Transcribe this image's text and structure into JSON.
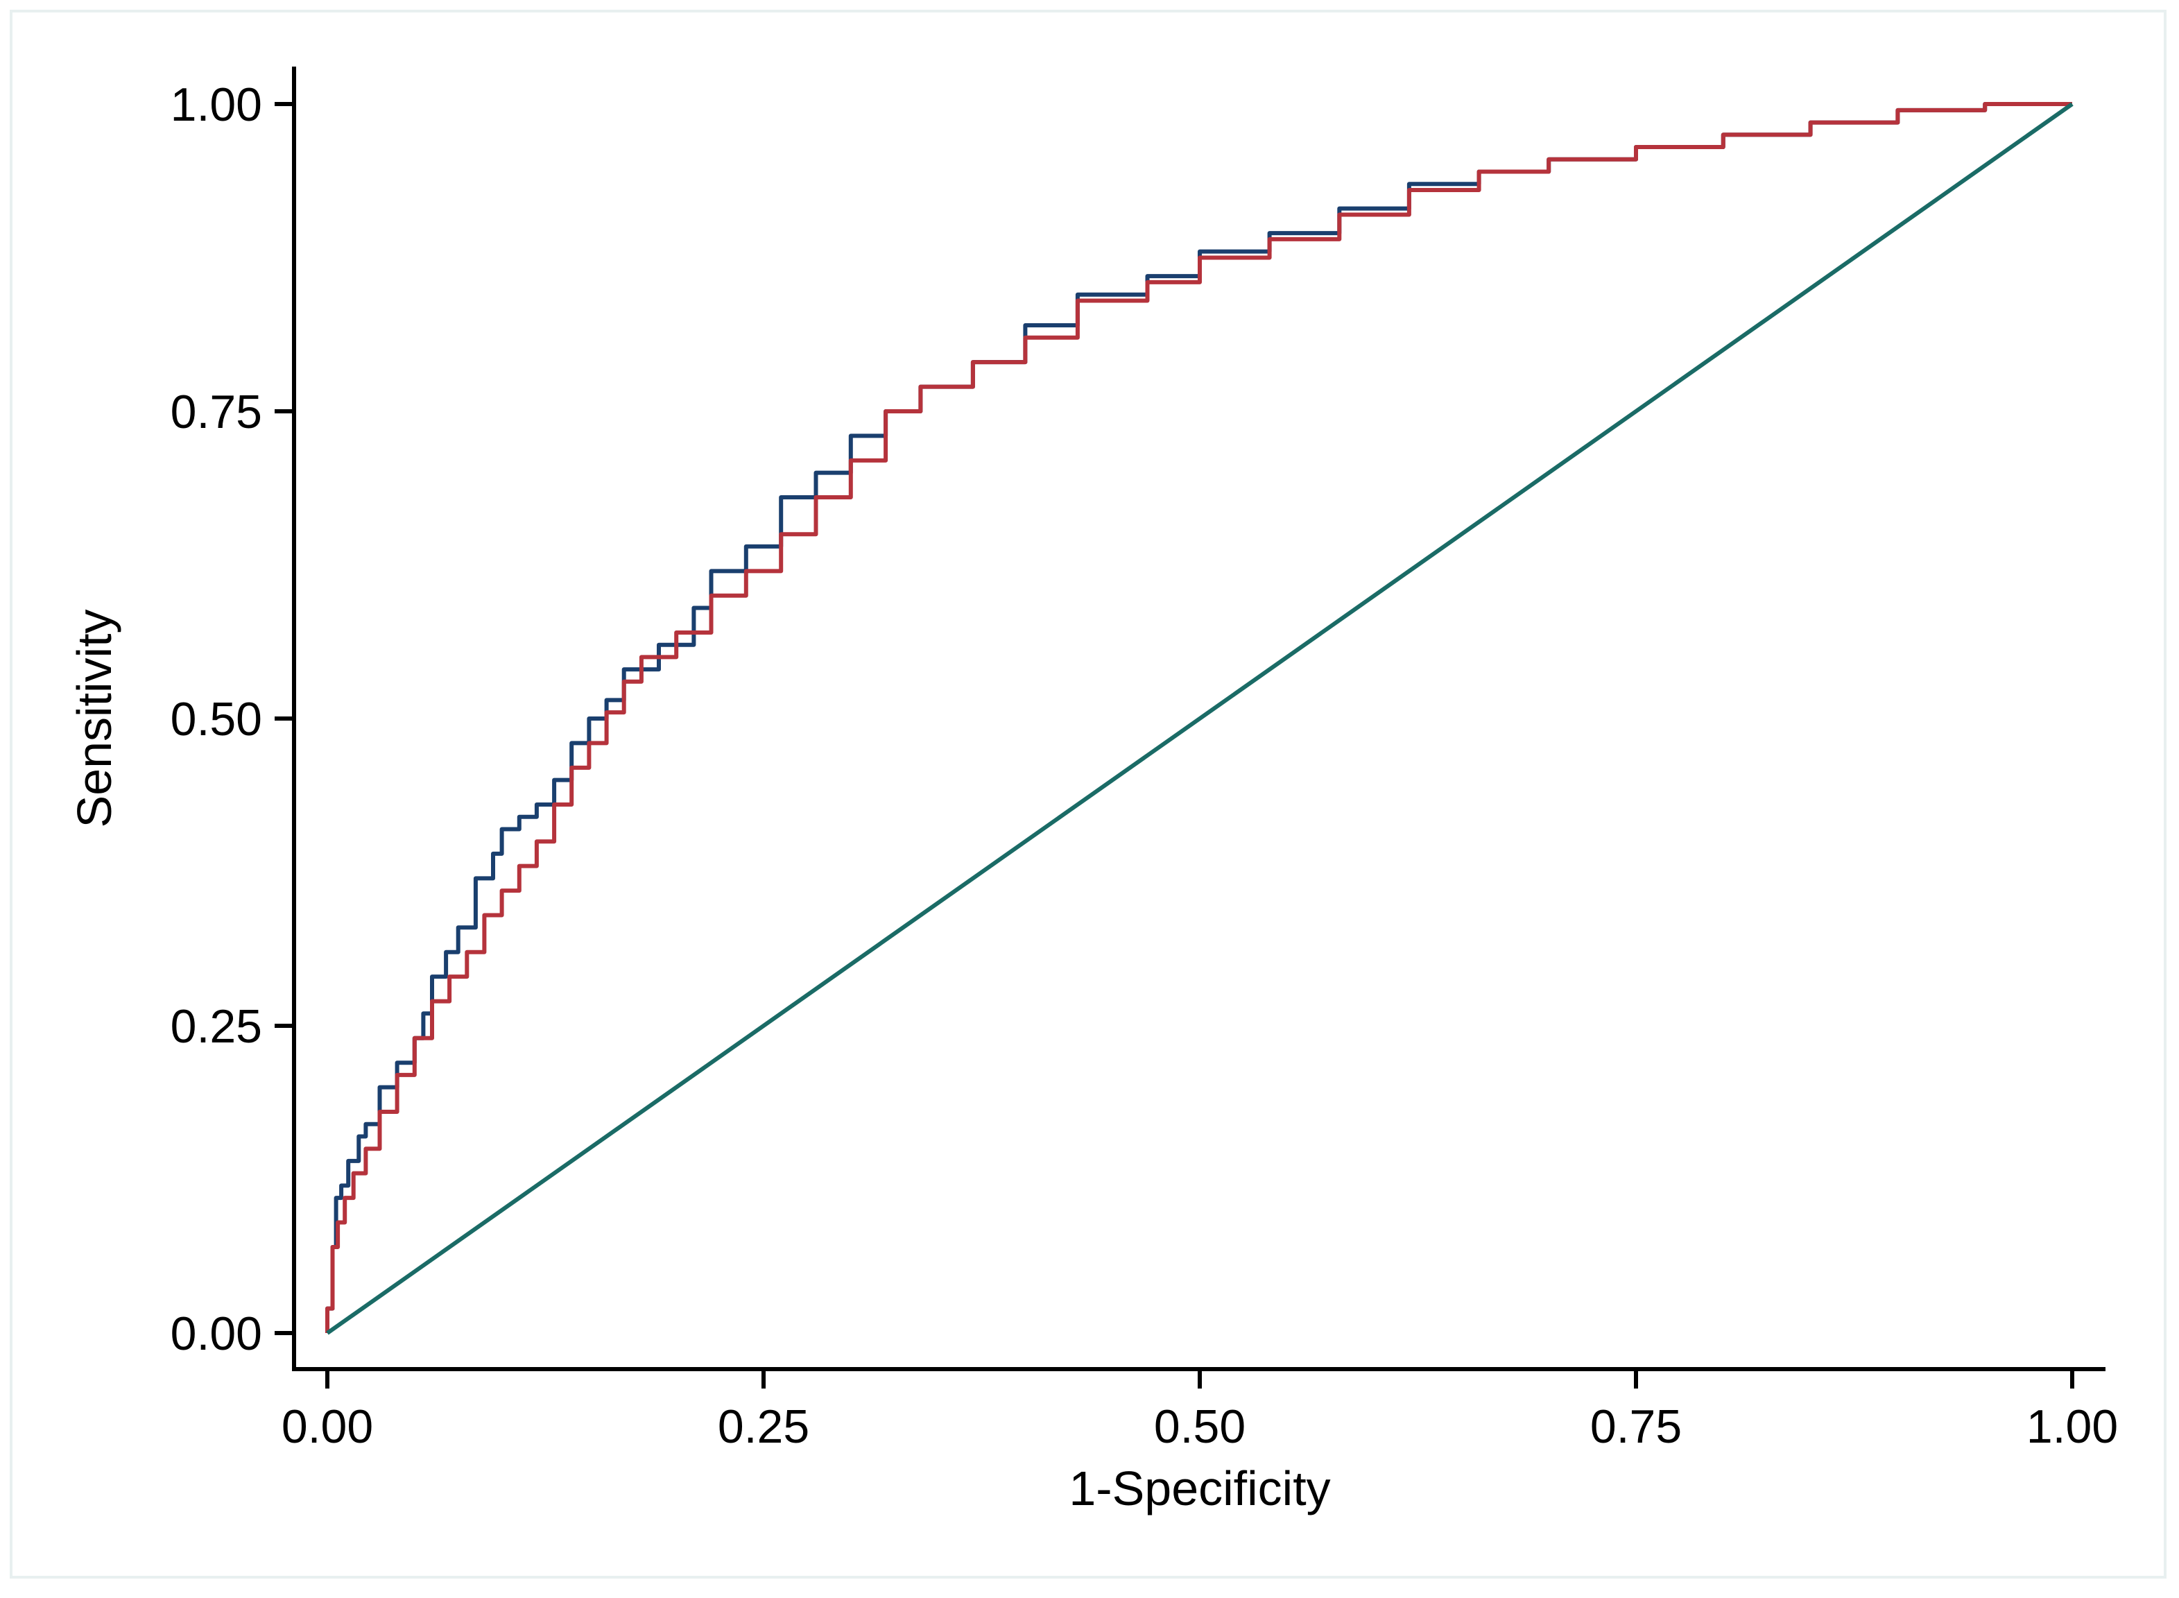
{
  "chart_data": {
    "type": "line",
    "title": "",
    "xlabel": "1-Specificity",
    "ylabel": "Sensitivity",
    "xlim": [
      0,
      1
    ],
    "ylim": [
      0,
      1
    ],
    "x_ticks": [
      "0.00",
      "0.25",
      "0.50",
      "0.75",
      "1.00"
    ],
    "y_ticks": [
      "0.00",
      "0.25",
      "0.50",
      "0.75",
      "1.00"
    ],
    "grid": false,
    "legend": "none",
    "series": [
      {
        "color": "#1a3f6e",
        "style": "step",
        "points": [
          [
            0.0,
            0.0
          ],
          [
            0.003,
            0.02
          ],
          [
            0.005,
            0.07
          ],
          [
            0.008,
            0.11
          ],
          [
            0.012,
            0.12
          ],
          [
            0.018,
            0.14
          ],
          [
            0.022,
            0.16
          ],
          [
            0.03,
            0.17
          ],
          [
            0.04,
            0.2
          ],
          [
            0.05,
            0.22
          ],
          [
            0.055,
            0.24
          ],
          [
            0.06,
            0.26
          ],
          [
            0.068,
            0.29
          ],
          [
            0.075,
            0.31
          ],
          [
            0.085,
            0.33
          ],
          [
            0.095,
            0.37
          ],
          [
            0.1,
            0.39
          ],
          [
            0.11,
            0.41
          ],
          [
            0.12,
            0.42
          ],
          [
            0.13,
            0.43
          ],
          [
            0.14,
            0.45
          ],
          [
            0.15,
            0.48
          ],
          [
            0.16,
            0.5
          ],
          [
            0.17,
            0.515
          ],
          [
            0.19,
            0.54
          ],
          [
            0.21,
            0.56
          ],
          [
            0.22,
            0.59
          ],
          [
            0.24,
            0.62
          ],
          [
            0.26,
            0.64
          ],
          [
            0.28,
            0.68
          ],
          [
            0.3,
            0.7
          ],
          [
            0.32,
            0.73
          ],
          [
            0.34,
            0.75
          ],
          [
            0.37,
            0.77
          ],
          [
            0.4,
            0.79
          ],
          [
            0.43,
            0.82
          ],
          [
            0.47,
            0.845
          ],
          [
            0.5,
            0.86
          ],
          [
            0.54,
            0.88
          ],
          [
            0.58,
            0.895
          ],
          [
            0.62,
            0.915
          ],
          [
            0.66,
            0.935
          ],
          [
            0.7,
            0.945
          ],
          [
            0.75,
            0.955
          ],
          [
            0.8,
            0.965
          ],
          [
            0.85,
            0.975
          ],
          [
            0.9,
            0.985
          ],
          [
            0.95,
            0.995
          ],
          [
            1.0,
            1.0
          ]
        ]
      },
      {
        "color": "#b5333c",
        "style": "step",
        "points": [
          [
            0.0,
            0.0
          ],
          [
            0.003,
            0.02
          ],
          [
            0.006,
            0.07
          ],
          [
            0.01,
            0.09
          ],
          [
            0.015,
            0.11
          ],
          [
            0.022,
            0.13
          ],
          [
            0.03,
            0.15
          ],
          [
            0.04,
            0.18
          ],
          [
            0.05,
            0.21
          ],
          [
            0.06,
            0.24
          ],
          [
            0.07,
            0.27
          ],
          [
            0.08,
            0.29
          ],
          [
            0.09,
            0.31
          ],
          [
            0.1,
            0.34
          ],
          [
            0.11,
            0.36
          ],
          [
            0.12,
            0.38
          ],
          [
            0.13,
            0.4
          ],
          [
            0.14,
            0.43
          ],
          [
            0.15,
            0.46
          ],
          [
            0.16,
            0.48
          ],
          [
            0.17,
            0.505
          ],
          [
            0.18,
            0.53
          ],
          [
            0.2,
            0.55
          ],
          [
            0.22,
            0.57
          ],
          [
            0.24,
            0.6
          ],
          [
            0.26,
            0.62
          ],
          [
            0.28,
            0.65
          ],
          [
            0.3,
            0.68
          ],
          [
            0.32,
            0.71
          ],
          [
            0.34,
            0.75
          ],
          [
            0.37,
            0.77
          ],
          [
            0.4,
            0.79
          ],
          [
            0.43,
            0.81
          ],
          [
            0.47,
            0.84
          ],
          [
            0.5,
            0.855
          ],
          [
            0.54,
            0.875
          ],
          [
            0.58,
            0.89
          ],
          [
            0.62,
            0.91
          ],
          [
            0.66,
            0.93
          ],
          [
            0.7,
            0.945
          ],
          [
            0.75,
            0.955
          ],
          [
            0.8,
            0.965
          ],
          [
            0.85,
            0.975
          ],
          [
            0.9,
            0.985
          ],
          [
            0.95,
            0.995
          ],
          [
            1.0,
            1.0
          ]
        ]
      },
      {
        "color": "#1a6b66",
        "style": "line",
        "points": [
          [
            0.0,
            0.0
          ],
          [
            1.0,
            1.0
          ]
        ]
      }
    ]
  }
}
